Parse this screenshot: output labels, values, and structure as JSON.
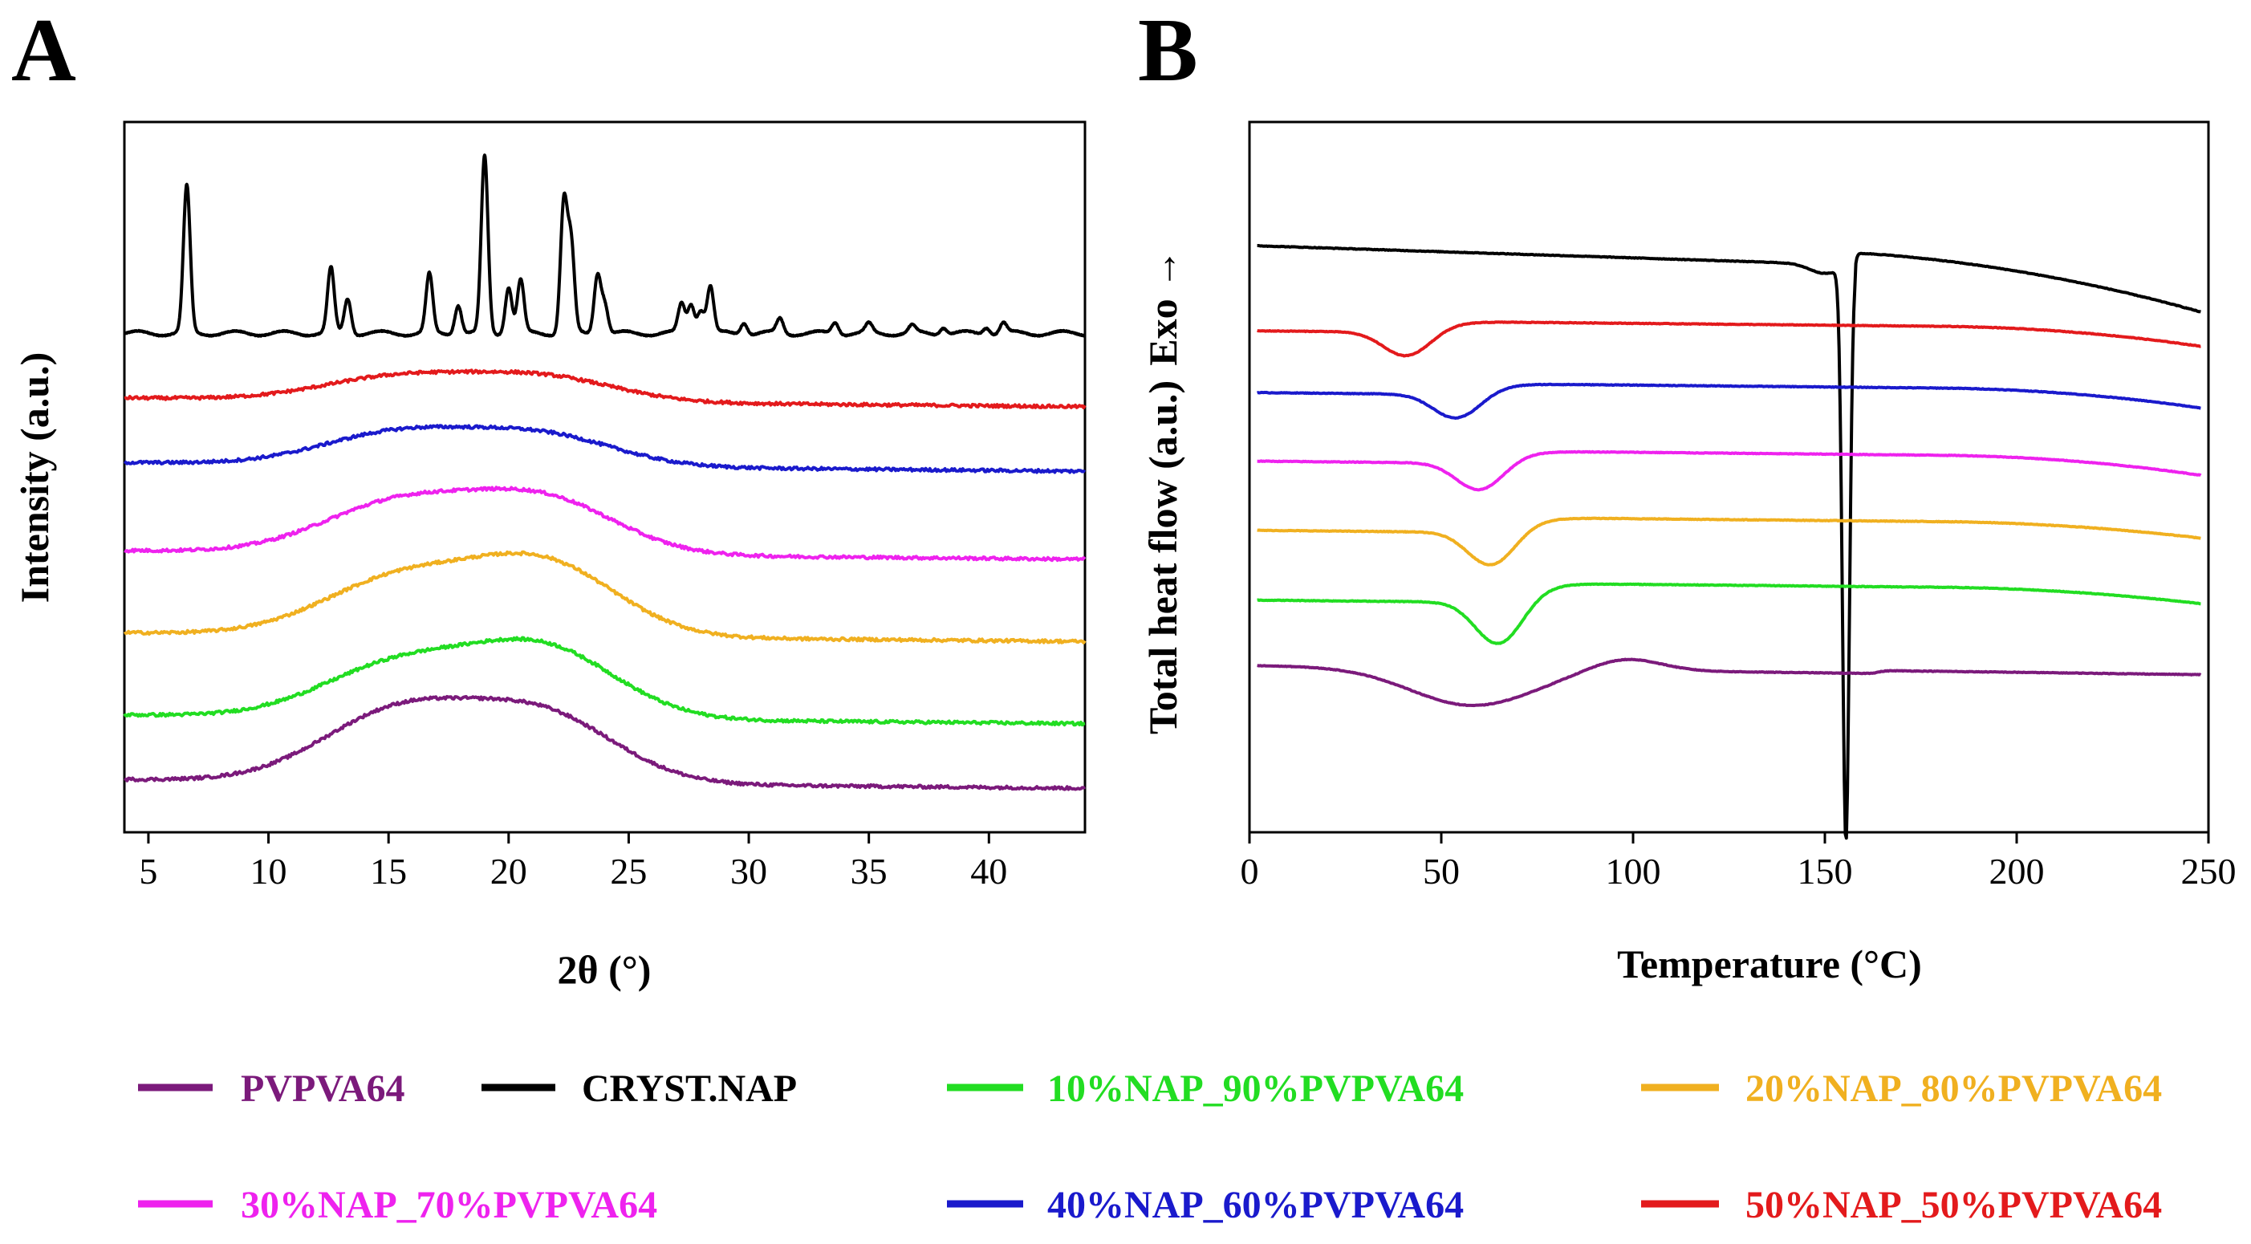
{
  "chart_data": [
    {
      "panel": "A",
      "type": "line",
      "title": "",
      "xlabel": "2θ (°)",
      "ylabel": "Intensity (a.u.)",
      "xlim": [
        4,
        44
      ],
      "xticks": [
        "5",
        "10",
        "15",
        "20",
        "25",
        "30",
        "35",
        "40"
      ],
      "xtick_values": [
        5,
        10,
        15,
        20,
        25,
        30,
        35,
        40
      ],
      "y_ticks_shown": false,
      "series": [
        {
          "name": "CRYST.NAP",
          "color": "#000000",
          "offset": 10.0,
          "kind": "crystalline",
          "peaks": [
            [
              6.6,
              2.5
            ],
            [
              12.6,
              1.1
            ],
            [
              13.3,
              0.6
            ],
            [
              16.7,
              1.0
            ],
            [
              17.9,
              0.5
            ],
            [
              19.0,
              3.0
            ],
            [
              20.0,
              0.8
            ],
            [
              20.5,
              0.9
            ],
            [
              22.3,
              2.2
            ],
            [
              22.6,
              1.5
            ],
            [
              23.7,
              1.0
            ],
            [
              24.0,
              0.5
            ],
            [
              27.2,
              0.5
            ],
            [
              27.6,
              0.5
            ],
            [
              28.0,
              0.4
            ],
            [
              28.4,
              0.8
            ],
            [
              29.8,
              0.2
            ],
            [
              31.3,
              0.25
            ],
            [
              33.6,
              0.2
            ],
            [
              35.0,
              0.15
            ],
            [
              36.8,
              0.12
            ],
            [
              38.1,
              0.12
            ],
            [
              39.9,
              0.12
            ],
            [
              40.6,
              0.18
            ]
          ]
        },
        {
          "name": "50%NAP_50%PVPVA64",
          "color": "#e31a1c",
          "offset": 8.9,
          "kind": "amorphous",
          "halo": [
            0.4,
            0.4
          ]
        },
        {
          "name": "40%NAP_60%PVPVA64",
          "color": "#1a1acc",
          "offset": 7.8,
          "kind": "amorphous",
          "halo": [
            0.55,
            0.5
          ]
        },
        {
          "name": "30%NAP_70%PVPVA64",
          "color": "#ee22ee",
          "offset": 6.3,
          "kind": "amorphous",
          "halo": [
            0.85,
            0.9
          ]
        },
        {
          "name": "20%NAP_80%PVPVA64",
          "color": "#f0b020",
          "offset": 4.9,
          "kind": "amorphous",
          "halo": [
            0.95,
            1.2
          ]
        },
        {
          "name": "10%NAP_90%PVPVA64",
          "color": "#22dd22",
          "offset": 3.5,
          "kind": "amorphous",
          "halo": [
            0.9,
            1.15
          ]
        },
        {
          "name": "PVPVA64",
          "color": "#7b1a7b",
          "offset": 2.4,
          "kind": "amorphous",
          "halo": [
            1.2,
            1.1
          ]
        }
      ]
    },
    {
      "panel": "B",
      "type": "line",
      "title": "",
      "xlabel": "Temperature (°C)",
      "ylabel": "Total heat flow (a.u.)",
      "ylabel_extra": "Exo →",
      "xlim": [
        0,
        250
      ],
      "xticks": [
        "0",
        "50",
        "100",
        "150",
        "200",
        "250"
      ],
      "xtick_values": [
        0,
        50,
        100,
        150,
        200,
        250
      ],
      "y_ticks_shown": false,
      "series": [
        {
          "name": "CRYST.NAP",
          "color": "#000000",
          "offset": 10.0,
          "drift": 0.8,
          "melt_peak_c": 155.5,
          "melt_depth": 9.3
        },
        {
          "name": "50%NAP_50%PVPVA64",
          "color": "#e31a1c",
          "offset": 8.7,
          "drift": 0.5,
          "tg_c": 41,
          "tg_step": 0.4
        },
        {
          "name": "40%NAP_60%PVPVA64",
          "color": "#1a1acc",
          "offset": 7.7,
          "drift": 0.5,
          "tg_c": 54,
          "tg_step": 0.4
        },
        {
          "name": "30%NAP_70%PVPVA64",
          "color": "#ee22ee",
          "offset": 6.6,
          "drift": 0.5,
          "tg_c": 60,
          "tg_step": 0.45
        },
        {
          "name": "20%NAP_80%PVPVA64",
          "color": "#f0b020",
          "offset": 5.5,
          "drift": 0.4,
          "tg_c": 63,
          "tg_step": 0.55
        },
        {
          "name": "10%NAP_90%PVPVA64",
          "color": "#22dd22",
          "offset": 4.4,
          "drift": 0.4,
          "tg_c": 65,
          "tg_step": 0.7
        },
        {
          "name": "PVPVA64",
          "color": "#7b1a7b",
          "offset": 3.2,
          "drift": 0.2,
          "tg_c": 60,
          "tg_step": 0.6
        }
      ]
    }
  ],
  "panels": {
    "a_label": "A",
    "b_label": "B"
  },
  "legend": [
    {
      "label": "PVPVA64",
      "color": "#7b1a7b"
    },
    {
      "label": "CRYST.NAP",
      "color": "#000000"
    },
    {
      "label": "10%NAP_90%PVPVA64",
      "color": "#22dd22"
    },
    {
      "label": "20%NAP_80%PVPVA64",
      "color": "#f0b020"
    },
    {
      "label": "30%NAP_70%PVPVA64",
      "color": "#ee22ee"
    },
    {
      "label": "40%NAP_60%PVPVA64",
      "color": "#1a1acc"
    },
    {
      "label": "50%NAP_50%PVPVA64",
      "color": "#e31a1c"
    }
  ]
}
